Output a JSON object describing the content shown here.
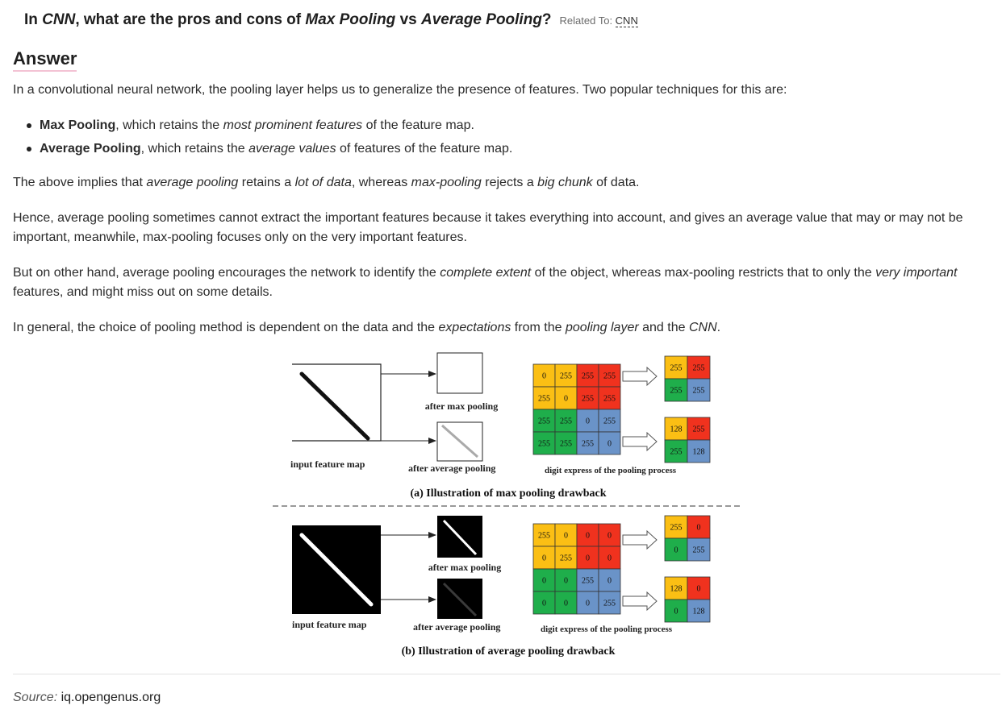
{
  "question": {
    "prefix": "In ",
    "cnn": "CNN",
    "mid1": ", what are the pros and cons of ",
    "max": "Max Pooling",
    "vs": " vs ",
    "avg": "Average Pooling",
    "qmark": "?",
    "related_label": "Related To: ",
    "related_link": "CNN"
  },
  "answer_heading": "Answer",
  "intro": "In a convolutional neural network, the pooling layer helps us to generalize the presence of features. Two popular techniques for this are:",
  "bullets": [
    {
      "bold": "Max Pooling",
      "pre": ", which retains the ",
      "em": "most prominent features",
      "post": " of the feature map."
    },
    {
      "bold": "Average Pooling",
      "pre": ", which retains the ",
      "em": "average values",
      "post": " of features of the feature map."
    }
  ],
  "para2": {
    "t1": "The above implies that ",
    "e1": "average pooling",
    "t2": " retains a ",
    "e2": "lot of data",
    "t3": ", whereas ",
    "e3": "max-pooling",
    "t4": " rejects a ",
    "e4": "big chunk",
    "t5": " of data."
  },
  "para3": "Hence, average pooling sometimes cannot extract the important features because it takes everything into account, and gives an average value that may or may not be important, meanwhile, max-pooling focuses only on the very important features.",
  "para4": {
    "t1": "But on other hand, average pooling encourages the network to identify the ",
    "e1": "complete extent",
    "t2": " of the object, whereas max-pooling restricts that to only the ",
    "e2": "very important",
    "t3": " features, and might miss out on some details."
  },
  "para5": {
    "t1": "In general, the choice of pooling method is dependent on the data and the ",
    "e1": "expectations",
    "t2": " from the ",
    "e2": "pooling layer",
    "t3": " and the ",
    "e3": "CNN",
    "t4": "."
  },
  "figure": {
    "a": {
      "after_max": "after max pooling",
      "input": "input feature map",
      "after_avg": "after average pooling",
      "digit": "digit express of the pooling process",
      "caption": "(a) Illustration of max pooling drawback",
      "grid": [
        [
          "0",
          "255",
          "255",
          "255"
        ],
        [
          "255",
          "0",
          "255",
          "255"
        ],
        [
          "255",
          "255",
          "0",
          "255"
        ],
        [
          "255",
          "255",
          "255",
          "0"
        ]
      ],
      "out_max": [
        [
          "255",
          "255"
        ],
        [
          "255",
          "255"
        ]
      ],
      "out_avg": [
        [
          "128",
          "255"
        ],
        [
          "255",
          "128"
        ]
      ]
    },
    "b": {
      "after_max": "after max pooling",
      "input": "input feature map",
      "after_avg": "after average pooling",
      "digit": "digit express of the pooling process",
      "caption": "(b) Illustration of average pooling drawback",
      "grid": [
        [
          "255",
          "0",
          "0",
          "0"
        ],
        [
          "0",
          "255",
          "0",
          "0"
        ],
        [
          "0",
          "0",
          "255",
          "0"
        ],
        [
          "0",
          "0",
          "0",
          "255"
        ]
      ],
      "out_max": [
        [
          "255",
          "0"
        ],
        [
          "0",
          "255"
        ]
      ],
      "out_avg": [
        [
          "128",
          "0"
        ],
        [
          "0",
          "128"
        ]
      ]
    },
    "colors": {
      "yellow": "#fbbf14",
      "red": "#f0321e",
      "green": "#1fae4b",
      "blue": "#6a93c8"
    }
  },
  "source": {
    "label": "Source:",
    "site": "iq.opengenus.org"
  }
}
